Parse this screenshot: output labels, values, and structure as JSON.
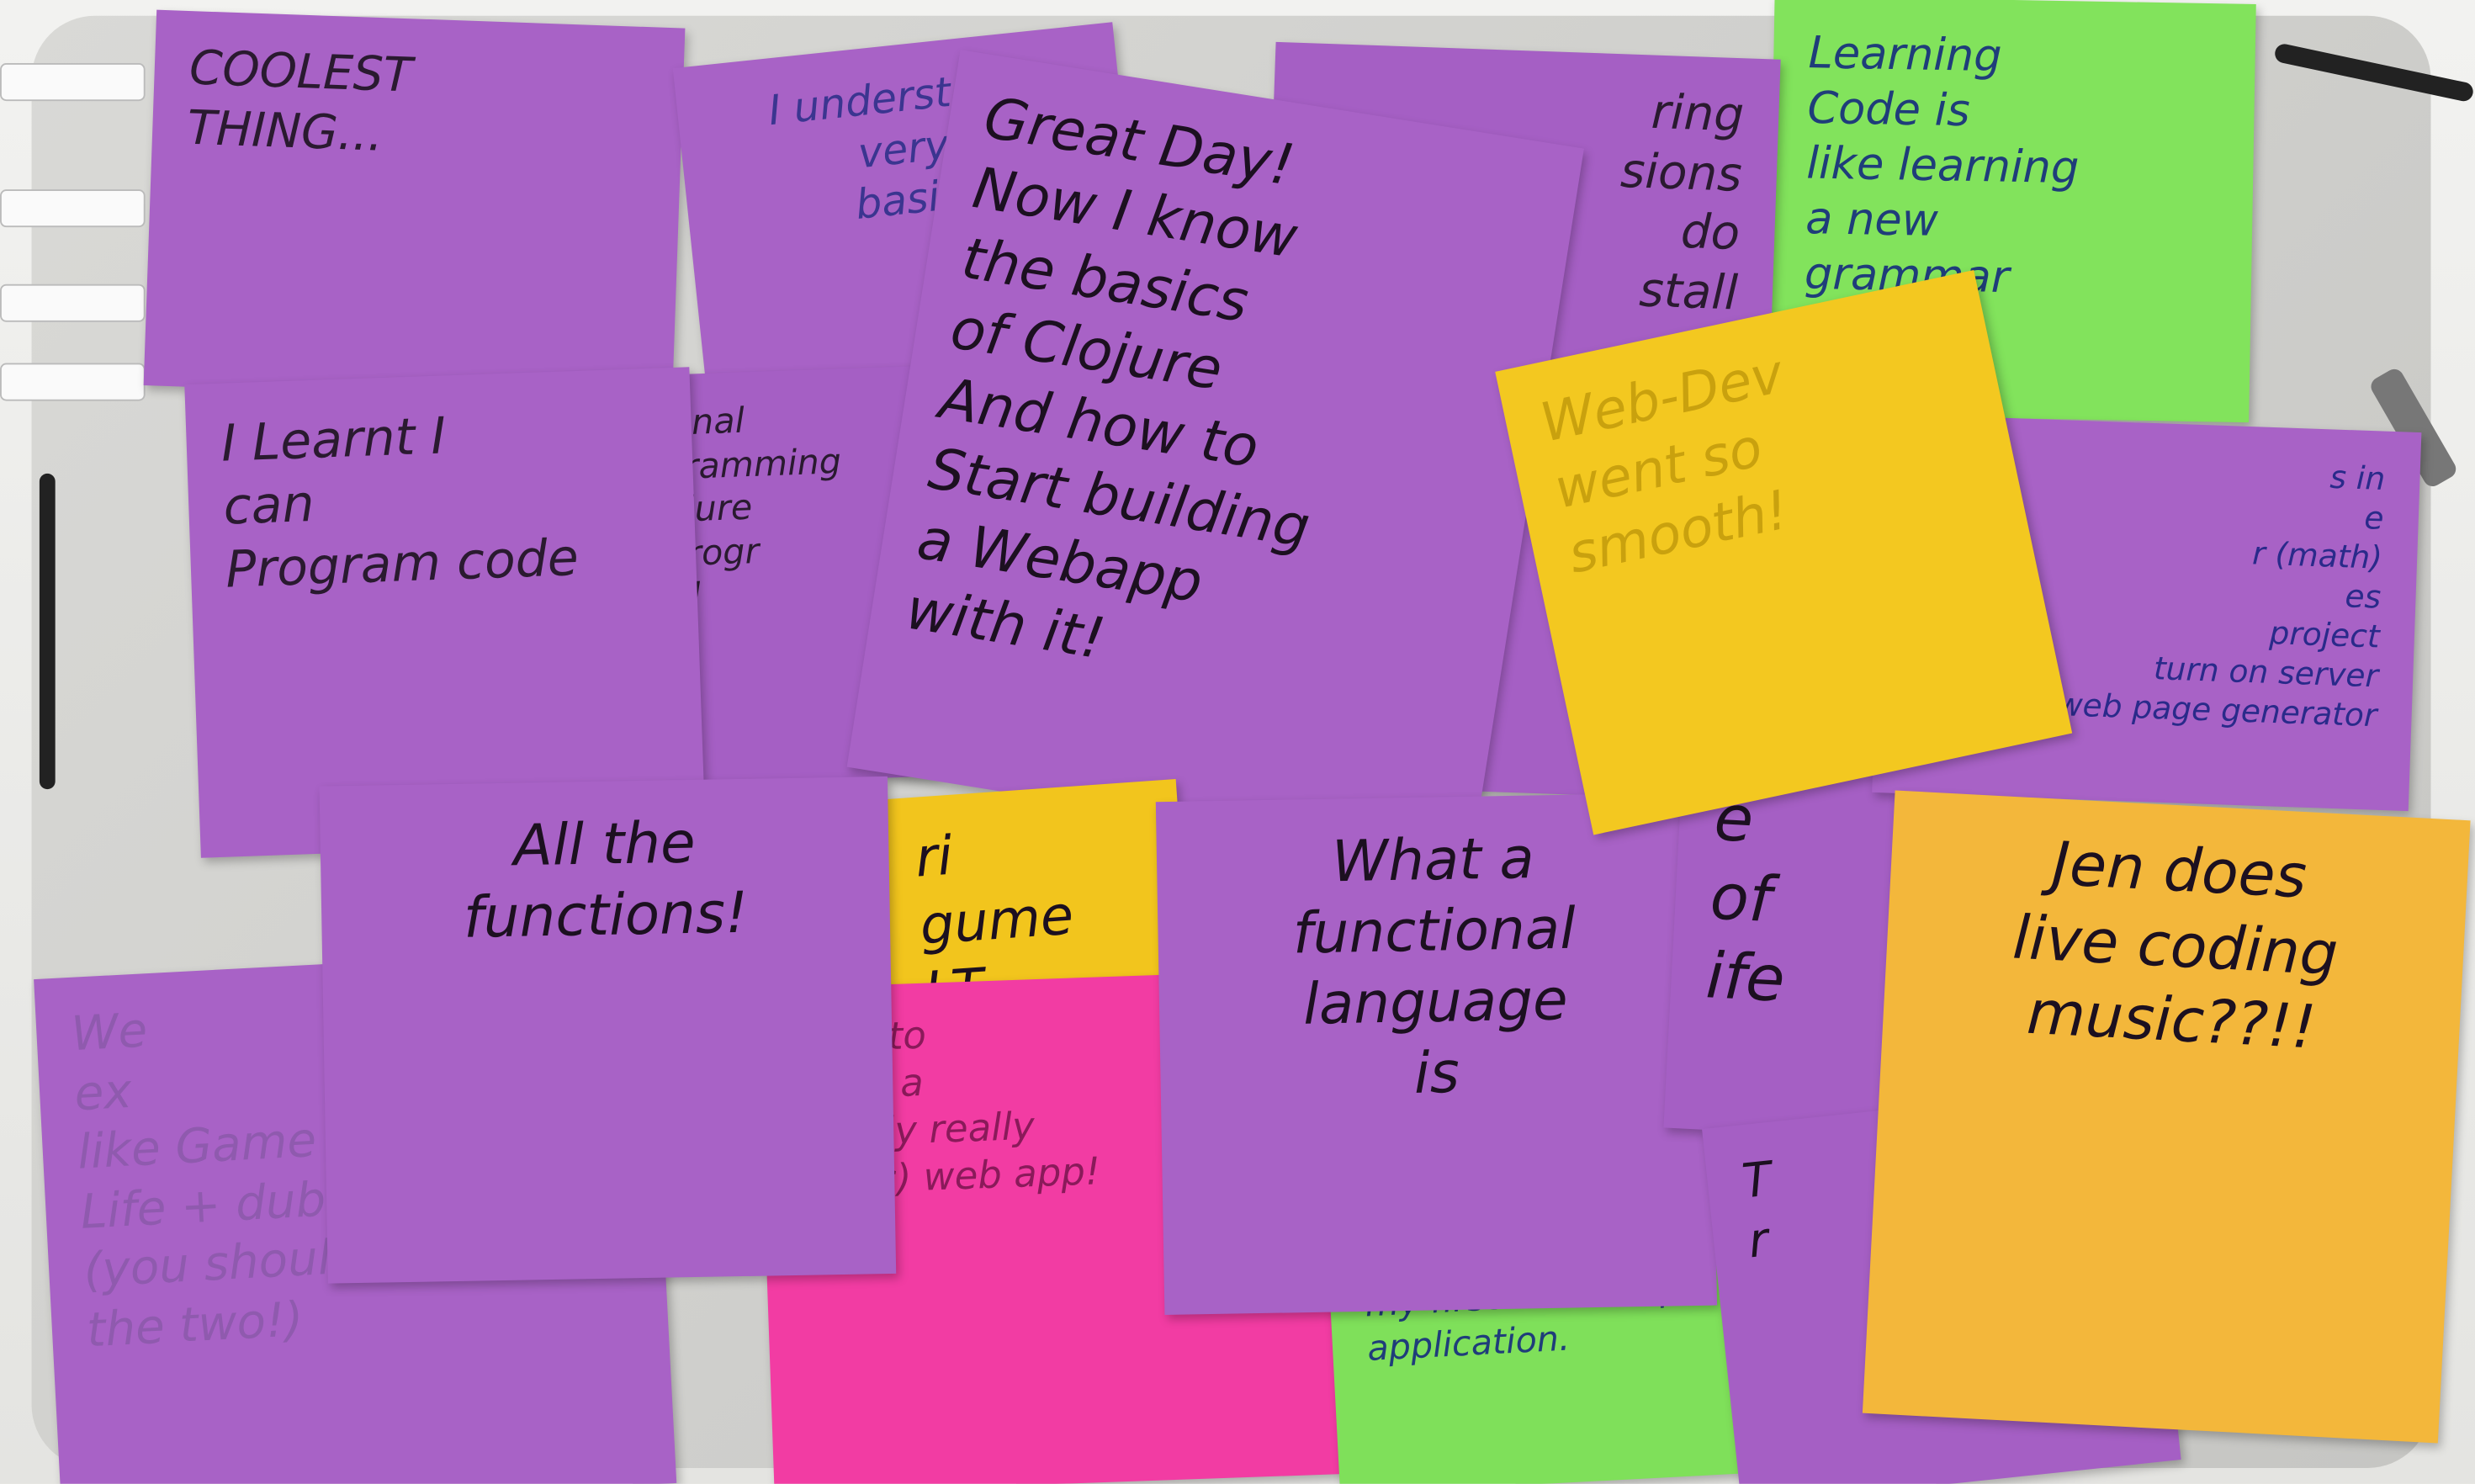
{
  "notes": [
    {
      "lines": [
        "We",
        "ex",
        "like Game of",
        "Life + dubstep",
        "(you should combine",
        "the two!)"
      ]
    },
    {
      "lines": [
        "COOLEST",
        "THING..."
      ]
    },
    {
      "lines": [
        "I understand",
        "very",
        "basic"
      ]
    },
    {
      "lines": [
        "Learning",
        "Code is",
        "like learning",
        "a new",
        "grammar"
      ]
    },
    {
      "lines": [
        "ring",
        "sions",
        "do",
        "stall"
      ]
    },
    {
      "lines": [
        "ional",
        "gramming",
        "ojure",
        "progr",
        "Cl"
      ]
    },
    {
      "lines": [
        "I Learnt I",
        "can",
        "Program code"
      ]
    },
    {
      "lines": [
        "Great Day!",
        "Now I know",
        "the basics",
        "of Clojure",
        "And how to",
        "Start building",
        "a Webapp",
        "with it!"
      ]
    },
    {
      "lines": [
        "ri",
        "gume",
        "LT"
      ]
    },
    {
      "lines": [
        "How to",
        "build a",
        "(really really",
        "basic) web app!"
      ]
    },
    {
      "lines": [
        "my first ever simple",
        "application."
      ]
    },
    {
      "lines": [
        "All the",
        "functions!"
      ]
    },
    {
      "lines": [
        "What a",
        "functional",
        "language",
        "is"
      ]
    },
    {
      "lines": [
        "e",
        "of",
        "ife"
      ]
    },
    {
      "lines": [
        "s in",
        "e",
        "r (math)",
        "es",
        "project",
        "turn on server",
        "web page generator"
      ]
    },
    {
      "lines": [
        "Web-Dev",
        "went so",
        "smooth!"
      ]
    },
    {
      "lines": [
        "T",
        "r"
      ]
    },
    {
      "lines": [
        "Jen does",
        "live coding",
        "music??!!"
      ]
    }
  ]
}
